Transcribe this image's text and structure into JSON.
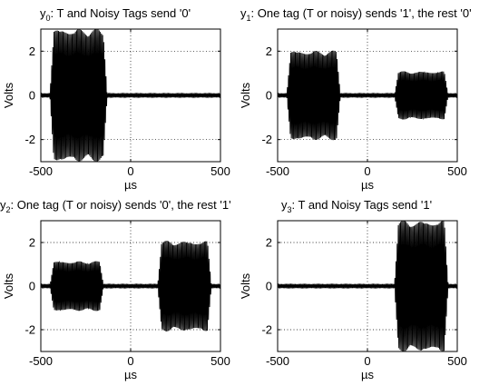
{
  "figure": {
    "title_prefix": "y",
    "axis_color": "#000000",
    "wave_color": "#000000",
    "wave_fill": "#3a3a3a"
  },
  "chart_data": [
    {
      "type": "line",
      "subscript": "0",
      "title_rest": ": T and Noisy Tags send '0'",
      "xlabel": "µs",
      "ylabel": "Volts",
      "xlim": [
        -500,
        500
      ],
      "ylim": [
        -3,
        3
      ],
      "xticks": [
        -500,
        0,
        500
      ],
      "yticks": [
        -2,
        0,
        2
      ],
      "grid": "dotted",
      "baseline_amplitude": 0.08,
      "bursts": [
        {
          "x_start": -450,
          "x_end": -130,
          "amplitude": 2.9
        }
      ]
    },
    {
      "type": "line",
      "subscript": "1",
      "title_rest": ": One tag (T or noisy) sends '1', the rest '0'",
      "xlabel": "µs",
      "ylabel": "Volts",
      "xlim": [
        -500,
        500
      ],
      "ylim": [
        -3,
        3
      ],
      "xticks": [
        -500,
        0,
        500
      ],
      "yticks": [
        -2,
        0,
        2
      ],
      "grid": "dotted",
      "baseline_amplitude": 0.08,
      "bursts": [
        {
          "x_start": -450,
          "x_end": -150,
          "amplitude": 1.95
        },
        {
          "x_start": 150,
          "x_end": 450,
          "amplitude": 1.05
        }
      ]
    },
    {
      "type": "line",
      "subscript": "2",
      "title_rest": ": One tag (T or noisy) sends '0', the rest '1'",
      "xlabel": "µs",
      "ylabel": "Volts",
      "xlim": [
        -500,
        500
      ],
      "ylim": [
        -3,
        3
      ],
      "xticks": [
        -500,
        0,
        500
      ],
      "yticks": [
        -2,
        0,
        2
      ],
      "grid": "dotted",
      "baseline_amplitude": 0.08,
      "bursts": [
        {
          "x_start": -450,
          "x_end": -150,
          "amplitude": 1.1
        },
        {
          "x_start": 150,
          "x_end": 450,
          "amplitude": 2.0
        }
      ]
    },
    {
      "type": "line",
      "subscript": "3",
      "title_rest": ": T and Noisy Tags send '1'",
      "xlabel": "µs",
      "ylabel": "Volts",
      "xlim": [
        -500,
        500
      ],
      "ylim": [
        -3,
        3
      ],
      "xticks": [
        -500,
        0,
        500
      ],
      "yticks": [
        -2,
        0,
        2
      ],
      "grid": "dotted",
      "baseline_amplitude": 0.08,
      "bursts": [
        {
          "x_start": 150,
          "x_end": 450,
          "amplitude": 2.9
        }
      ]
    }
  ]
}
